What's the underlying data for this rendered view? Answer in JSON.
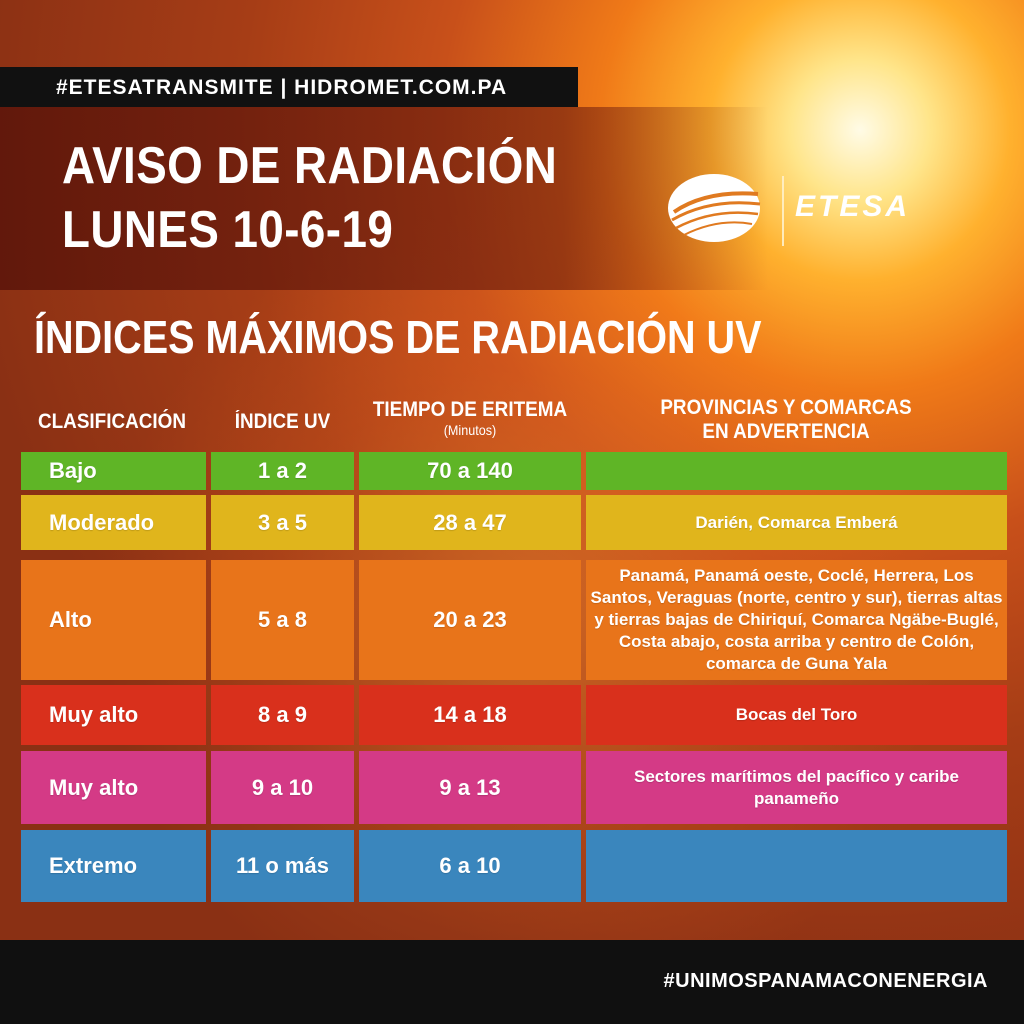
{
  "hashtag": "#ETESATRANSMITE | HIDROMET.COM.PA",
  "title_line1": "AVISO DE RADIACIÓN",
  "title_line2": "LUNES 10-6-19",
  "logo_text": "ETESA",
  "subtitle": "ÍNDICES MÁXIMOS DE RADIACIÓN UV",
  "table": {
    "headers": {
      "clasificacion": "CLASIFICACIÓN",
      "indice": "ÍNDICE UV",
      "tiempo": "TIEMPO DE ERITEMA",
      "tiempo_unit": "(Minutos)",
      "provincias_line1": "PROVINCIAS Y COMARCAS",
      "provincias_line2": "EN ADVERTENCIA"
    },
    "rows": [
      {
        "clasificacion": "Bajo",
        "indice": "1 a 2",
        "tiempo": "70 a 140",
        "provincias": "",
        "color": "#5fb526"
      },
      {
        "clasificacion": "Moderado",
        "indice": "3 a 5",
        "tiempo": "28 a 47",
        "provincias": "Darién, Comarca Emberá",
        "color": "#e0b51c"
      },
      {
        "clasificacion": "Alto",
        "indice": "5 a 8",
        "tiempo": "20 a 23",
        "provincias": "Panamá, Panamá oeste, Coclé, Herrera, Los Santos, Veraguas (norte, centro y sur), tierras altas y tierras bajas de Chiriquí, Comarca Ngäbe-Buglé, Costa abajo, costa arriba y centro de Colón, comarca de Guna Yala",
        "color": "#e8741a"
      },
      {
        "clasificacion": "Muy alto",
        "indice": "8 a 9",
        "tiempo": "14 a 18",
        "provincias": "Bocas del Toro",
        "color": "#d9301c"
      },
      {
        "clasificacion": "Muy alto",
        "indice": "9 a 10",
        "tiempo": "9 a 13",
        "provincias": "Sectores marítimos del pacífico y caribe panameño",
        "color": "#d43a86"
      },
      {
        "clasificacion": "Extremo",
        "indice": "11 o más",
        "tiempo": "6 a 10",
        "provincias": "",
        "color": "#3a86bd"
      }
    ]
  },
  "footer_hashtag": "#UNIMOSPANAMACONENERGIA"
}
